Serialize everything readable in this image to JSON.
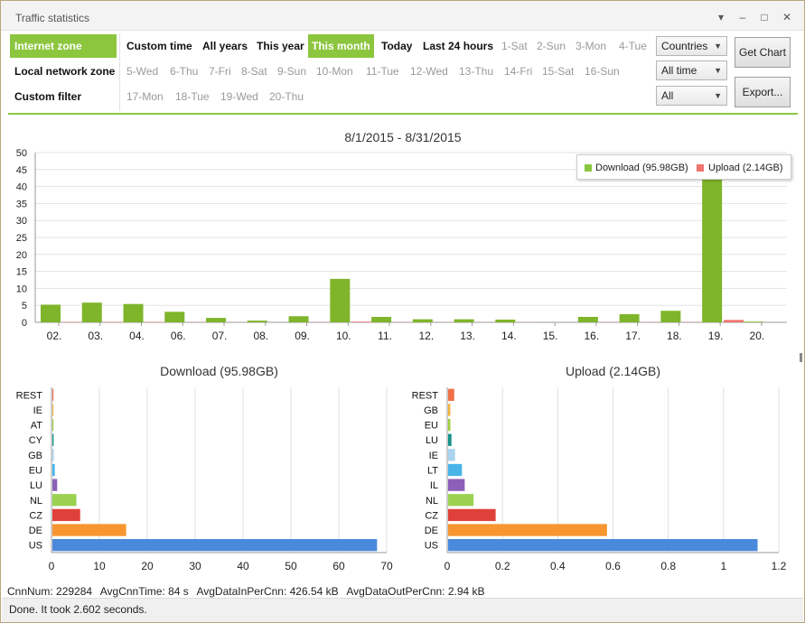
{
  "window": {
    "title": "Traffic statistics",
    "controls": [
      "▾",
      "–",
      "□",
      "✕"
    ]
  },
  "zones": [
    {
      "label": "Internet zone",
      "active": true
    },
    {
      "label": "Local network zone",
      "active": false
    },
    {
      "label": "Custom filter",
      "active": false
    }
  ],
  "periods": {
    "custom_time": "Custom time",
    "all_years": "All years",
    "this_year": "This year",
    "this_month": "This month",
    "today": "Today",
    "last_24_hours": "Last 24 hours"
  },
  "days": [
    "1-Sat",
    "2-Sun",
    "3-Mon",
    "4-Tue",
    "5-Wed",
    "6-Thu",
    "7-Fri",
    "8-Sat",
    "9-Sun",
    "10-Mon",
    "11-Tue",
    "12-Wed",
    "13-Thu",
    "14-Fri",
    "15-Sat",
    "16-Sun",
    "17-Mon",
    "18-Tue",
    "19-Wed",
    "20-Thu"
  ],
  "selects": {
    "group_by": "Countries",
    "time_range": "All time",
    "filter": "All"
  },
  "buttons": {
    "get_chart": "Get Chart",
    "export": "Export..."
  },
  "colors": {
    "accent_green": "#8cc63f",
    "download": "#8cc63f",
    "download_dark": "#6a9a1f",
    "upload": "#f07470",
    "country_colors": [
      "#f07048",
      "#f3b33d",
      "#9ccf3b",
      "#12928a",
      "#aad4ef",
      "#48b4e8",
      "#8d5fb8",
      "#9ad24f",
      "#e0403a",
      "#f79630",
      "#4a89dc"
    ]
  },
  "chart_data": [
    {
      "type": "bar",
      "title": "8/1/2015 - 8/31/2015",
      "categories": [
        "02.",
        "03.",
        "04.",
        "06.",
        "07.",
        "08.",
        "09.",
        "10.",
        "11.",
        "12.",
        "13.",
        "14.",
        "15.",
        "16.",
        "17.",
        "18.",
        "19.",
        "20."
      ],
      "series": [
        {
          "name": "Download (95.98GB)",
          "values": [
            5.2,
            5.8,
            5.4,
            3.1,
            1.3,
            0.5,
            1.8,
            12.8,
            1.6,
            0.9,
            0.9,
            0.8,
            0,
            1.6,
            2.4,
            3.4,
            44.5,
            0.2
          ]
        },
        {
          "name": "Upload (2.14GB)",
          "values": [
            0.1,
            0.1,
            0.1,
            0.05,
            0.03,
            0.02,
            0.05,
            0.2,
            0.05,
            0.03,
            0.03,
            0.03,
            0,
            0.05,
            0.06,
            0.08,
            0.7,
            0.02
          ]
        }
      ],
      "ylim": [
        0,
        50
      ],
      "yticks": [
        0,
        5,
        10,
        15,
        20,
        25,
        30,
        35,
        40,
        45,
        50
      ],
      "legend": "top-right",
      "grid": true
    },
    {
      "type": "bar",
      "orientation": "horizontal",
      "title": "Download (95.98GB)",
      "categories": [
        "REST",
        "IE",
        "AT",
        "CY",
        "GB",
        "EU",
        "LU",
        "NL",
        "CZ",
        "DE",
        "US"
      ],
      "values": [
        0.1,
        0.15,
        0.2,
        0.25,
        0.3,
        0.5,
        1.0,
        5.0,
        5.8,
        15.4,
        67.8
      ],
      "xlim": [
        0,
        70
      ],
      "xticks": [
        0,
        10,
        20,
        30,
        40,
        50,
        60,
        70
      ],
      "grid": true
    },
    {
      "type": "bar",
      "orientation": "horizontal",
      "title": "Upload (2.14GB)",
      "categories": [
        "REST",
        "GB",
        "EU",
        "LU",
        "IE",
        "LT",
        "IL",
        "NL",
        "CZ",
        "DE",
        "US"
      ],
      "values": [
        0.022,
        0.008,
        0.008,
        0.012,
        0.025,
        0.05,
        0.06,
        0.092,
        0.172,
        0.575,
        1.12
      ],
      "xlim": [
        0,
        1.2
      ],
      "xticks": [
        "0",
        "0.2",
        "0.4",
        "0.6",
        "0.8",
        "1",
        "1.2"
      ],
      "grid": true
    }
  ],
  "stats": {
    "cnn_num": "CnnNum: 229284",
    "avg_cnn_time": "AvgCnnTime: 84 s",
    "avg_in": "AvgDataInPerCnn: 426.54 kB",
    "avg_out": "AvgDataOutPerCnn: 2.94 kB"
  },
  "status": "Done. It took 2.602 seconds."
}
